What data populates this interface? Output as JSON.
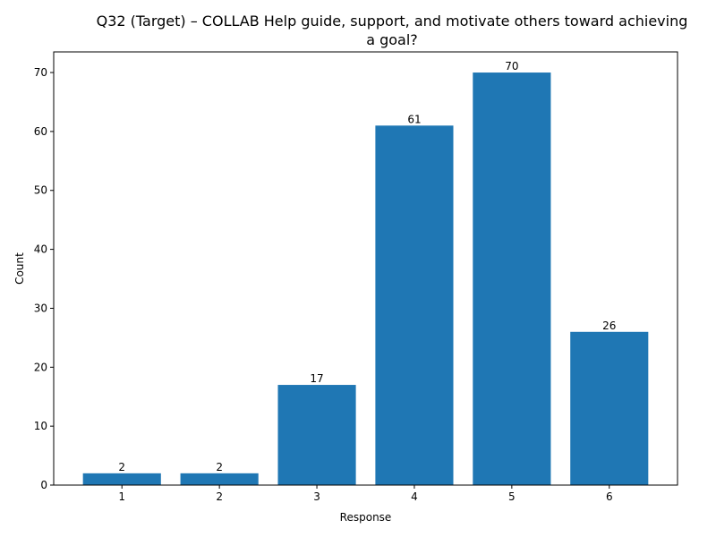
{
  "chart_data": {
    "type": "bar",
    "title_lines": [
      "Q32 (Target) – COLLAB Help guide, support, and motivate others toward achieving",
      "a goal?"
    ],
    "xlabel": "Response",
    "ylabel": "Count",
    "categories": [
      "1",
      "2",
      "3",
      "4",
      "5",
      "6"
    ],
    "values": [
      2,
      2,
      17,
      61,
      70,
      26
    ],
    "data_labels": [
      "2",
      "2",
      "17",
      "61",
      "70",
      "26"
    ],
    "yticks": [
      0,
      10,
      20,
      30,
      40,
      50,
      60,
      70
    ],
    "ytick_labels": [
      "0",
      "10",
      "20",
      "30",
      "40",
      "50",
      "60",
      "70"
    ],
    "ylim": [
      0,
      73.5
    ],
    "grid": false,
    "legend": "none",
    "bar_color": "#1f77b4"
  }
}
